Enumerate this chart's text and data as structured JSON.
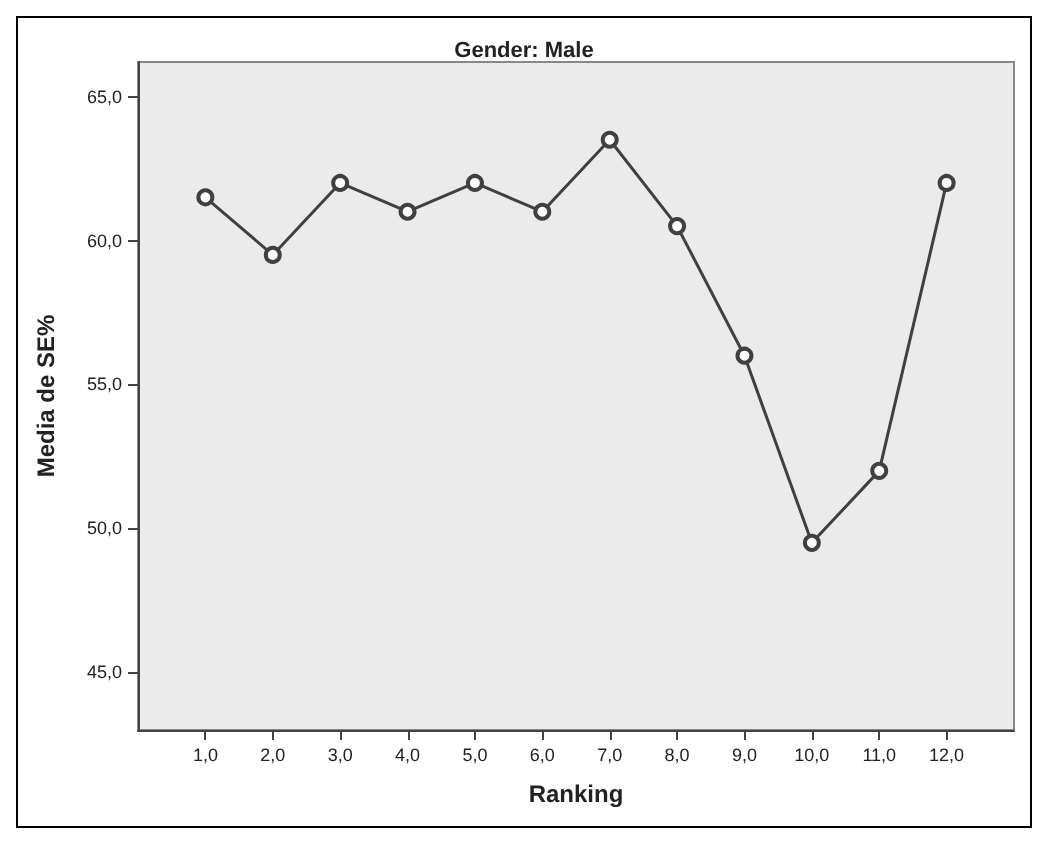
{
  "chart_data": {
    "type": "line",
    "title": "Gender: Male",
    "xlabel": "Ranking",
    "ylabel": "Media de SE%",
    "x": [
      1,
      2,
      3,
      4,
      5,
      6,
      7,
      8,
      9,
      10,
      11,
      12
    ],
    "series": [
      {
        "color": "#404040",
        "values": [
          61.5,
          59.5,
          62,
          61,
          62,
          61,
          63.5,
          60.5,
          56,
          49.5,
          52,
          62
        ]
      }
    ],
    "xlim": [
      0,
      13
    ],
    "xticks": [
      {
        "value": 1,
        "label": "1,0"
      },
      {
        "value": 2,
        "label": "2,0"
      },
      {
        "value": 3,
        "label": "3,0"
      },
      {
        "value": 4,
        "label": "4,0"
      },
      {
        "value": 5,
        "label": "5,0"
      },
      {
        "value": 6,
        "label": "6,0"
      },
      {
        "value": 7,
        "label": "7,0"
      },
      {
        "value": 8,
        "label": "8,0"
      },
      {
        "value": 9,
        "label": "9,0"
      },
      {
        "value": 10,
        "label": "10,0"
      },
      {
        "value": 11,
        "label": "11,0"
      },
      {
        "value": 12,
        "label": "12,0"
      }
    ],
    "ylim": [
      43,
      66.2
    ],
    "yticks": [
      {
        "value": 45,
        "label": "45,0"
      },
      {
        "value": 50,
        "label": "50,0"
      },
      {
        "value": 55,
        "label": "55,0"
      },
      {
        "value": 60,
        "label": "60,0"
      },
      {
        "value": 65,
        "label": "65,0"
      }
    ],
    "grid": false,
    "marker": "circle",
    "line_style": "solid"
  }
}
